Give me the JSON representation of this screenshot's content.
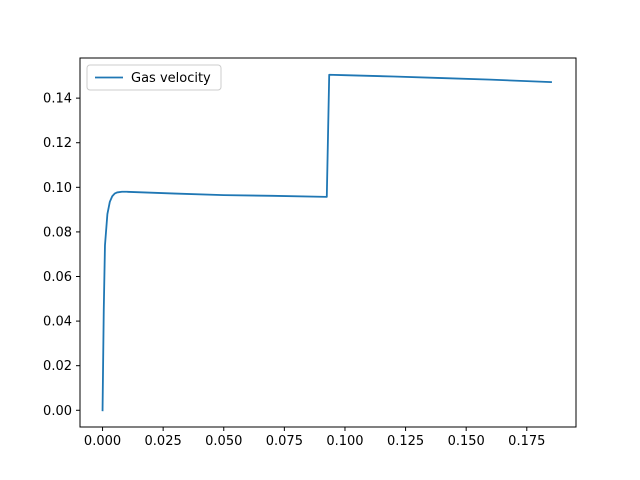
{
  "chart_data": {
    "type": "line",
    "title": "",
    "xlabel": "",
    "ylabel": "",
    "xlim": [
      -0.0093,
      0.1953
    ],
    "ylim": [
      -0.0075,
      0.158
    ],
    "grid": false,
    "legend_position": "top-left",
    "x_ticks": [
      0.0,
      0.025,
      0.05,
      0.075,
      0.1,
      0.125,
      0.15,
      0.175
    ],
    "x_tick_labels": [
      "0.000",
      "0.025",
      "0.050",
      "0.075",
      "0.100",
      "0.125",
      "0.150",
      "0.175"
    ],
    "y_ticks": [
      0.0,
      0.02,
      0.04,
      0.06,
      0.08,
      0.1,
      0.12,
      0.14
    ],
    "y_tick_labels": [
      "0.00",
      "0.02",
      "0.04",
      "0.06",
      "0.08",
      "0.10",
      "0.12",
      "0.14"
    ],
    "series": [
      {
        "name": "Gas velocity",
        "color": "#1f77b4",
        "x": [
          0.0,
          0.0005,
          0.001,
          0.0015,
          0.002,
          0.003,
          0.004,
          0.005,
          0.006,
          0.008,
          0.01,
          0.03,
          0.05,
          0.07,
          0.0925,
          0.093,
          0.0935,
          0.1,
          0.12,
          0.14,
          0.16,
          0.185
        ],
        "y": [
          0.0,
          0.045,
          0.074,
          0.081,
          0.088,
          0.0935,
          0.096,
          0.0972,
          0.0977,
          0.098,
          0.098,
          0.0972,
          0.0965,
          0.0962,
          0.0957,
          0.123,
          0.1505,
          0.1503,
          0.1497,
          0.149,
          0.1483,
          0.1472
        ]
      }
    ]
  }
}
